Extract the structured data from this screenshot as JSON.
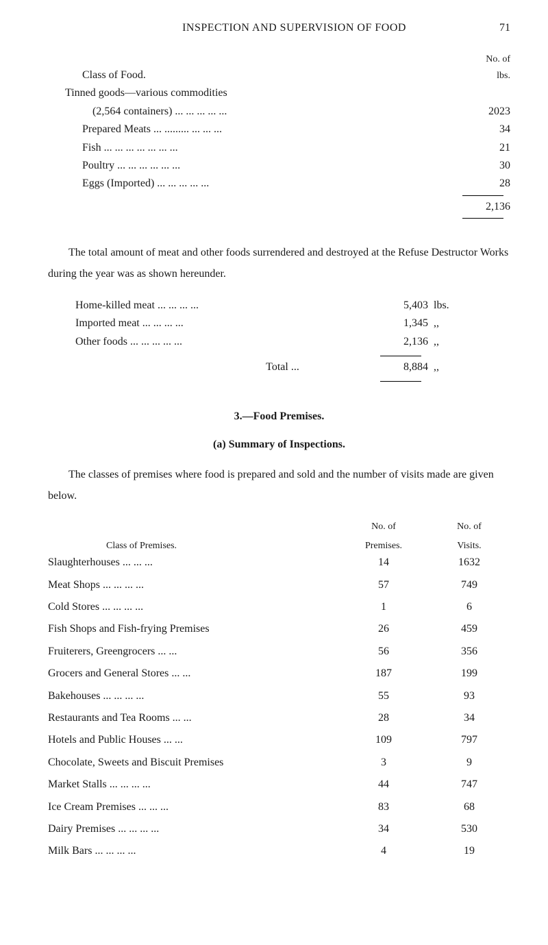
{
  "header": {
    "running_head": "INSPECTION AND SUPERVISION OF FOOD",
    "page_number": "71"
  },
  "table1": {
    "col1_header": "Class of Food.",
    "col2_header_line1": "No. of",
    "col2_header_line2": "lbs.",
    "subhead": "Tinned goods—various commodities",
    "rows": [
      {
        "label": "(2,564 containers) ...   ...   ...   ...   ...",
        "value": "2023"
      },
      {
        "label": "Prepared Meats ...   .........   ...   ...   ...",
        "value": "34"
      },
      {
        "label": "Fish   ...   ...   ...   ...   ...   ...   ...",
        "value": "21"
      },
      {
        "label": "Poultry   ...   ...   ...   ...   ...   ...",
        "value": "30"
      },
      {
        "label": "Eggs (Imported)   ...   ...   ...   ...   ...",
        "value": "28"
      }
    ],
    "total": "2,136"
  },
  "paragraph1": "The total amount of meat and other foods surrendered and destroyed at the Refuse Destructor Works during the year was as shown hereunder.",
  "table2": {
    "rows": [
      {
        "label": "Home-killed meat ...   ...   ...   ...",
        "value": "5,403",
        "unit": "lbs."
      },
      {
        "label": "Imported meat   ...   ...   ...   ...",
        "value": "1,345",
        "unit": ",,"
      },
      {
        "label": "Other foods ...   ...   ...   ...   ...",
        "value": "2,136",
        "unit": ",,"
      }
    ],
    "total_label": "Total   ...",
    "total_value": "8,884",
    "total_unit": ",,"
  },
  "heading3": "3.—Food Premises.",
  "subheading3": "(a) Summary of Inspections.",
  "paragraph2": "The classes of premises where food is prepared and sold and the number of visits made are given below.",
  "table3": {
    "header": {
      "col1": "Class of Premises.",
      "col2_line1": "No. of",
      "col2_line2": "Premises.",
      "col3_line1": "No. of",
      "col3_line2": "Visits."
    },
    "rows": [
      {
        "label": "Slaughterhouses   ...   ...   ...",
        "premises": "14",
        "dots": "...",
        "visits": "1632"
      },
      {
        "label": "Meat Shops   ...   ...   ...   ...",
        "premises": "57",
        "dots": "...",
        "visits": "749"
      },
      {
        "label": "Cold Stores   ...   ...   ...   ...",
        "premises": "1",
        "dots": "...",
        "visits": "6"
      },
      {
        "label": "Fish Shops and Fish-frying Premises",
        "premises": "26",
        "dots": "...",
        "visits": "459"
      },
      {
        "label": "Fruiterers, Greengrocers   ...   ...",
        "premises": "56",
        "dots": "...",
        "visits": "356"
      },
      {
        "label": "Grocers and General Stores   ...   ...",
        "premises": "187",
        "dots": "...",
        "visits": "199"
      },
      {
        "label": "Bakehouses   ...   ...   ...   ...",
        "premises": "55",
        "dots": "...",
        "visits": "93"
      },
      {
        "label": "Restaurants and Tea Rooms   ...   ...",
        "premises": "28",
        "dots": "...",
        "visits": "34"
      },
      {
        "label": "Hotels and Public Houses   ...   ...",
        "premises": "109",
        "dots": "...",
        "visits": "797"
      },
      {
        "label": "Chocolate, Sweets and Biscuit Premises",
        "premises": "3",
        "dots": "...",
        "visits": "9"
      },
      {
        "label": "Market Stalls   ...   ...   ...   ...",
        "premises": "44",
        "dots": "...",
        "visits": "747"
      },
      {
        "label": "Ice Cream Premises   ...   ...   ...",
        "premises": "83",
        "dots": "...",
        "visits": "68"
      },
      {
        "label": "Dairy Premises ...   ...   ...   ...",
        "premises": "34",
        "dots": "...",
        "visits": "530"
      },
      {
        "label": "Milk Bars   ...   ...   ...   ...",
        "premises": "4",
        "dots": "...",
        "visits": "19"
      }
    ]
  }
}
